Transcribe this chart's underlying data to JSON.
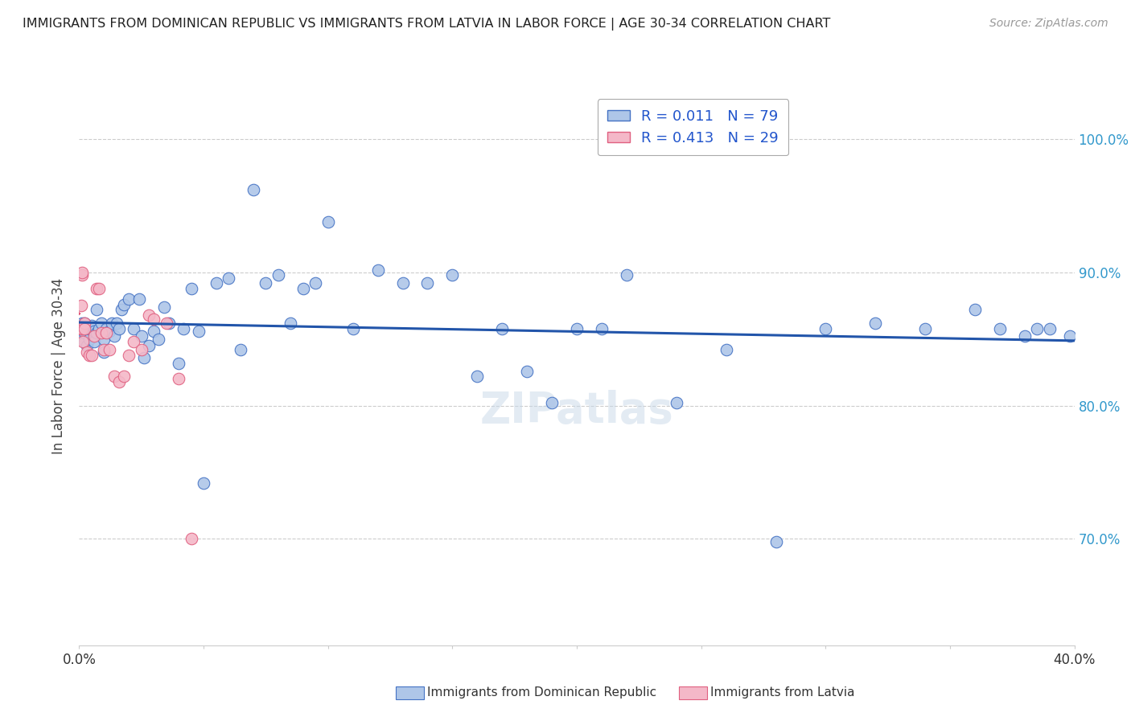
{
  "title": "IMMIGRANTS FROM DOMINICAN REPUBLIC VS IMMIGRANTS FROM LATVIA IN LABOR FORCE | AGE 30-34 CORRELATION CHART",
  "source": "Source: ZipAtlas.com",
  "ylabel": "In Labor Force | Age 30-34",
  "xlim": [
    0.0,
    0.4
  ],
  "ylim": [
    0.62,
    1.04
  ],
  "y_ticks": [
    0.7,
    0.8,
    0.9,
    1.0
  ],
  "y_tick_labels": [
    "70.0%",
    "80.0%",
    "90.0%",
    "100.0%"
  ],
  "blue_color": "#aec6e8",
  "blue_edge_color": "#4472c4",
  "pink_color": "#f4b8c8",
  "pink_edge_color": "#e06080",
  "blue_line_color": "#2255aa",
  "pink_line_color": "#e05070",
  "legend_text_color": "#2255cc",
  "grid_color": "#cccccc",
  "legend_R_blue": "0.011",
  "legend_N_blue": "79",
  "legend_R_pink": "0.413",
  "legend_N_pink": "29",
  "blue_x": [
    0.0005,
    0.0008,
    0.001,
    0.001,
    0.0015,
    0.0015,
    0.002,
    0.002,
    0.002,
    0.003,
    0.003,
    0.004,
    0.004,
    0.005,
    0.006,
    0.006,
    0.007,
    0.007,
    0.008,
    0.009,
    0.01,
    0.01,
    0.011,
    0.012,
    0.013,
    0.014,
    0.015,
    0.016,
    0.017,
    0.018,
    0.02,
    0.022,
    0.024,
    0.025,
    0.026,
    0.028,
    0.03,
    0.032,
    0.034,
    0.036,
    0.04,
    0.042,
    0.045,
    0.048,
    0.05,
    0.055,
    0.06,
    0.065,
    0.07,
    0.075,
    0.08,
    0.085,
    0.09,
    0.095,
    0.1,
    0.11,
    0.12,
    0.13,
    0.14,
    0.15,
    0.16,
    0.17,
    0.18,
    0.19,
    0.2,
    0.21,
    0.22,
    0.24,
    0.26,
    0.28,
    0.3,
    0.32,
    0.34,
    0.36,
    0.37,
    0.38,
    0.385,
    0.39,
    0.398
  ],
  "blue_y": [
    0.855,
    0.858,
    0.855,
    0.862,
    0.852,
    0.86,
    0.848,
    0.855,
    0.862,
    0.845,
    0.858,
    0.85,
    0.858,
    0.86,
    0.848,
    0.856,
    0.855,
    0.872,
    0.858,
    0.862,
    0.84,
    0.85,
    0.858,
    0.856,
    0.862,
    0.852,
    0.862,
    0.858,
    0.872,
    0.876,
    0.88,
    0.858,
    0.88,
    0.852,
    0.836,
    0.845,
    0.856,
    0.85,
    0.874,
    0.862,
    0.832,
    0.858,
    0.888,
    0.856,
    0.742,
    0.892,
    0.896,
    0.842,
    0.962,
    0.892,
    0.898,
    0.862,
    0.888,
    0.892,
    0.938,
    0.858,
    0.902,
    0.892,
    0.892,
    0.898,
    0.822,
    0.858,
    0.826,
    0.802,
    0.858,
    0.858,
    0.898,
    0.802,
    0.842,
    0.698,
    0.858,
    0.862,
    0.858,
    0.872,
    0.858,
    0.852,
    0.858,
    0.858,
    0.852
  ],
  "pink_x": [
    0.0005,
    0.0008,
    0.001,
    0.001,
    0.001,
    0.0015,
    0.002,
    0.002,
    0.003,
    0.004,
    0.005,
    0.006,
    0.007,
    0.008,
    0.009,
    0.01,
    0.011,
    0.012,
    0.014,
    0.016,
    0.018,
    0.02,
    0.022,
    0.025,
    0.028,
    0.03,
    0.035,
    0.04,
    0.045
  ],
  "pink_y": [
    0.858,
    0.875,
    0.898,
    0.9,
    0.858,
    0.848,
    0.862,
    0.858,
    0.84,
    0.838,
    0.838,
    0.852,
    0.888,
    0.888,
    0.855,
    0.842,
    0.855,
    0.842,
    0.822,
    0.818,
    0.822,
    0.838,
    0.848,
    0.842,
    0.868,
    0.865,
    0.862,
    0.82,
    0.7
  ]
}
